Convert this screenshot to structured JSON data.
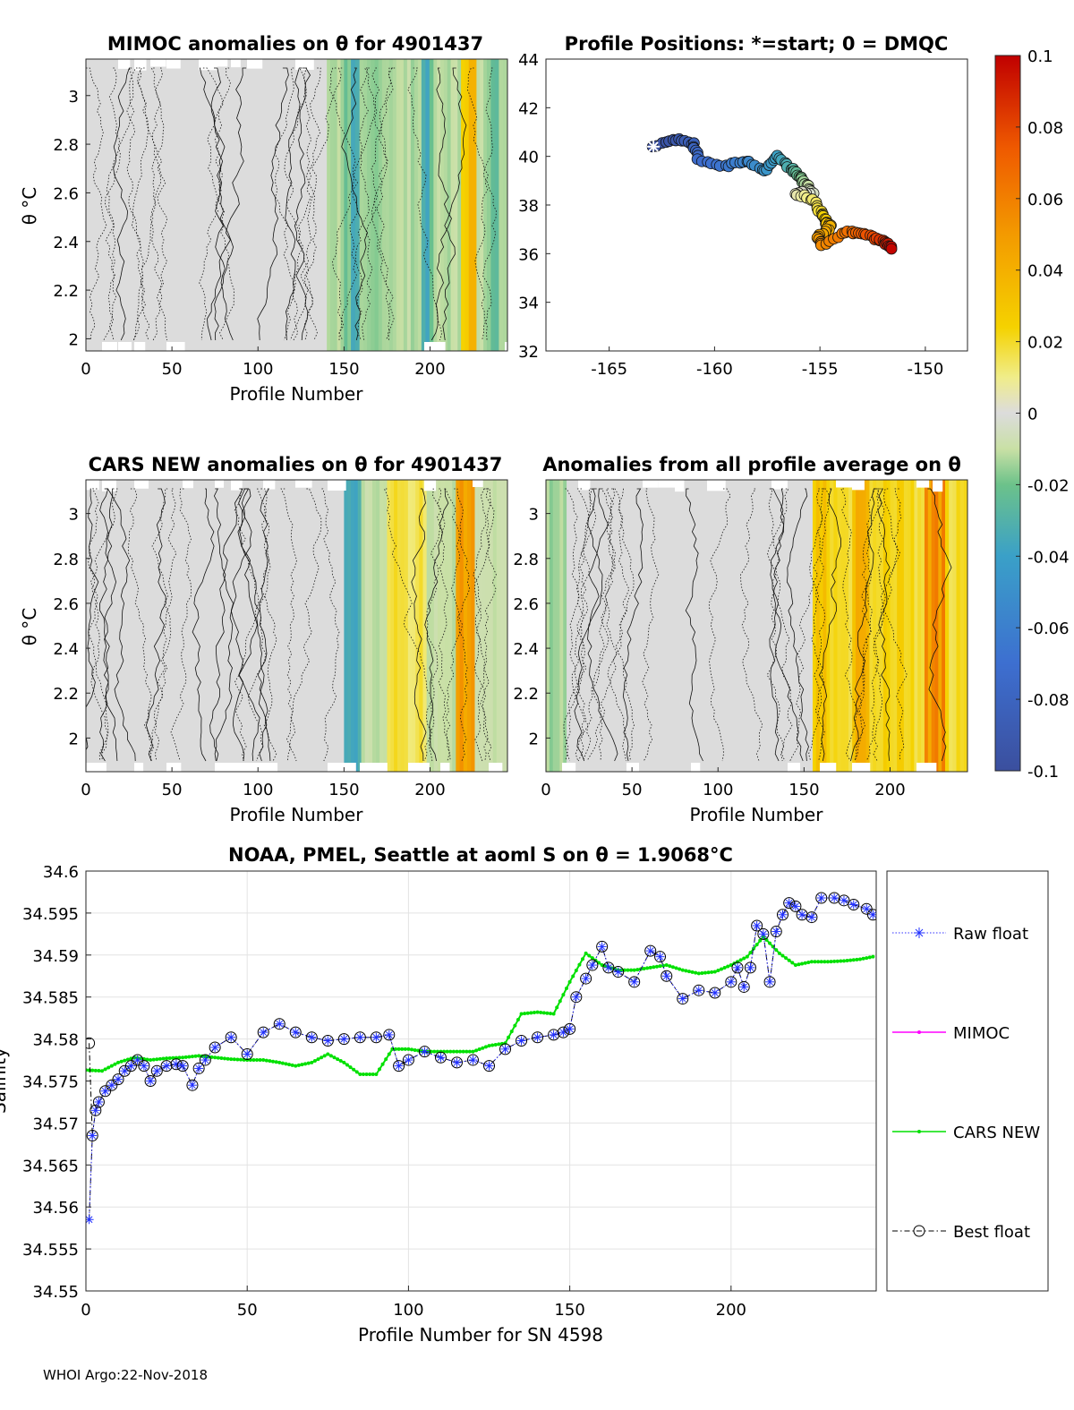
{
  "footer": "WHOI Argo:22-Nov-2018",
  "colorbar": {
    "ticks": [
      "0.1",
      "0.08",
      "0.06",
      "0.04",
      "0.02",
      "0",
      "-0.02",
      "-0.04",
      "-0.06",
      "-0.08",
      "-0.1"
    ],
    "range": [
      -0.1,
      0.1
    ]
  },
  "chart_data": [
    {
      "id": "mimoc",
      "type": "heatmap",
      "title": "MIMOC anomalies on θ  for 4901437",
      "xlabel": "Profile Number",
      "ylabel": "θ °C",
      "xlim": [
        0,
        245
      ],
      "ylim": [
        1.95,
        3.15
      ],
      "xticks": [
        "0",
        "50",
        "100",
        "150",
        "200"
      ],
      "yticks": [
        "2",
        "2.2",
        "2.4",
        "2.6",
        "2.8",
        "3"
      ],
      "bands": [
        {
          "x0": 0,
          "x1": 140,
          "v": 0.0
        },
        {
          "x0": 140,
          "x1": 150,
          "v": -0.012
        },
        {
          "x0": 150,
          "x1": 154,
          "v": -0.02
        },
        {
          "x0": 154,
          "x1": 159,
          "v": -0.045
        },
        {
          "x0": 159,
          "x1": 170,
          "v": -0.018
        },
        {
          "x0": 170,
          "x1": 195,
          "v": -0.012
        },
        {
          "x0": 195,
          "x1": 202,
          "v": -0.03
        },
        {
          "x0": 202,
          "x1": 218,
          "v": -0.012
        },
        {
          "x0": 218,
          "x1": 227,
          "v": 0.035
        },
        {
          "x0": 227,
          "x1": 233,
          "v": -0.012
        },
        {
          "x0": 233,
          "x1": 240,
          "v": -0.02
        },
        {
          "x0": 240,
          "x1": 245,
          "v": -0.01
        }
      ]
    },
    {
      "id": "positions",
      "type": "scatter",
      "title": "Profile Positions: *=start; 0 = DMQC",
      "xlim": [
        -168,
        -148
      ],
      "ylim": [
        32,
        44
      ],
      "xticks": [
        "-165",
        "-160",
        "-155",
        "-150"
      ],
      "yticks": [
        "32",
        "34",
        "36",
        "38",
        "40",
        "42",
        "44"
      ],
      "track": [
        [
          -162.9,
          40.4
        ],
        [
          -161.8,
          40.7
        ],
        [
          -161.0,
          40.5
        ],
        [
          -160.8,
          39.9
        ],
        [
          -159.5,
          39.6
        ],
        [
          -158.5,
          39.8
        ],
        [
          -157.6,
          39.4
        ],
        [
          -157.0,
          40.0
        ],
        [
          -156.4,
          39.5
        ],
        [
          -156.0,
          39.2
        ],
        [
          -155.7,
          38.9
        ],
        [
          -155.3,
          38.5
        ],
        [
          -156.2,
          38.5
        ],
        [
          -155.3,
          38.2
        ],
        [
          -154.9,
          37.6
        ],
        [
          -154.7,
          37.3
        ],
        [
          -154.5,
          37.1
        ],
        [
          -155.1,
          36.7
        ],
        [
          -154.9,
          36.3
        ],
        [
          -153.8,
          36.9
        ],
        [
          -153.0,
          36.8
        ],
        [
          -152.3,
          36.6
        ],
        [
          -151.8,
          36.4
        ],
        [
          -151.5,
          36.2
        ]
      ]
    },
    {
      "id": "cars",
      "type": "heatmap",
      "title": "CARS NEW anomalies on θ for 4901437",
      "xlabel": "Profile Number",
      "ylabel": "θ °C",
      "xlim": [
        0,
        245
      ],
      "ylim": [
        1.85,
        3.15
      ],
      "xticks": [
        "0",
        "50",
        "100",
        "150",
        "200"
      ],
      "yticks": [
        "2",
        "2.2",
        "2.4",
        "2.6",
        "2.8",
        "3"
      ],
      "bands": [
        {
          "x0": 0,
          "x1": 150,
          "v": 0.0
        },
        {
          "x0": 150,
          "x1": 160,
          "v": -0.03
        },
        {
          "x0": 160,
          "x1": 175,
          "v": -0.01
        },
        {
          "x0": 175,
          "x1": 185,
          "v": 0.022
        },
        {
          "x0": 185,
          "x1": 198,
          "v": 0.016
        },
        {
          "x0": 198,
          "x1": 215,
          "v": -0.01
        },
        {
          "x0": 215,
          "x1": 226,
          "v": 0.045
        },
        {
          "x0": 226,
          "x1": 245,
          "v": -0.01
        }
      ]
    },
    {
      "id": "allprof",
      "type": "heatmap",
      "title": "Anomalies from all profile average on θ",
      "xlabel": "Profile Number",
      "xlim": [
        0,
        245
      ],
      "ylim": [
        1.85,
        3.15
      ],
      "xticks": [
        "0",
        "50",
        "100",
        "150",
        "200"
      ],
      "yticks": [
        "2",
        "2.2",
        "2.4",
        "2.6",
        "2.8",
        "3"
      ],
      "bands": [
        {
          "x0": 0,
          "x1": 12,
          "v": -0.015
        },
        {
          "x0": 12,
          "x1": 155,
          "v": 0.0
        },
        {
          "x0": 155,
          "x1": 165,
          "v": 0.03
        },
        {
          "x0": 165,
          "x1": 178,
          "v": 0.02
        },
        {
          "x0": 178,
          "x1": 188,
          "v": 0.04
        },
        {
          "x0": 188,
          "x1": 212,
          "v": 0.025
        },
        {
          "x0": 212,
          "x1": 220,
          "v": 0.02
        },
        {
          "x0": 220,
          "x1": 232,
          "v": 0.06
        },
        {
          "x0": 232,
          "x1": 245,
          "v": 0.02
        }
      ]
    },
    {
      "id": "salinity",
      "type": "line",
      "title": "NOAA, PMEL, Seattle at aoml S on θ = 1.9068°C",
      "xlabel": "Profile Number for SN 4598",
      "ylabel": "Salinity",
      "xlim": [
        0,
        245
      ],
      "ylim": [
        34.55,
        34.6
      ],
      "xticks": [
        "0",
        "50",
        "100",
        "150",
        "200"
      ],
      "yticks": [
        "34.55",
        "34.555",
        "34.56",
        "34.565",
        "34.57",
        "34.575",
        "34.58",
        "34.585",
        "34.59",
        "34.595",
        "34.6"
      ],
      "legend": [
        "Raw float",
        "MIMOC",
        "CARS NEW",
        "Best float"
      ],
      "series": [
        {
          "name": "Raw float",
          "x": [
            1,
            2,
            3,
            4,
            6,
            8,
            10,
            12,
            14,
            16,
            18,
            20,
            22,
            25,
            28,
            30,
            33,
            35,
            37,
            40,
            45,
            50,
            55,
            60,
            65,
            70,
            75,
            80,
            85,
            90,
            94,
            97,
            100,
            105,
            110,
            115,
            120,
            125,
            130,
            135,
            140,
            145,
            148,
            150,
            152,
            155,
            157,
            160,
            162,
            165,
            170,
            175,
            178,
            180,
            185,
            190,
            195,
            200,
            202,
            204,
            206,
            208,
            210,
            212,
            214,
            216,
            218,
            220,
            222,
            225,
            228,
            232,
            235,
            238,
            242,
            244
          ],
          "values": [
            34.5585,
            34.5685,
            34.5715,
            34.5725,
            34.5738,
            34.5745,
            34.5752,
            34.5762,
            34.5768,
            34.5775,
            34.5768,
            34.575,
            34.5762,
            34.5768,
            34.577,
            34.5768,
            34.5745,
            34.5765,
            34.5775,
            34.579,
            34.5802,
            34.5782,
            34.5808,
            34.5818,
            34.5808,
            34.5802,
            34.5798,
            34.58,
            34.5802,
            34.5802,
            34.5805,
            34.5768,
            34.5775,
            34.5785,
            34.5778,
            34.5772,
            34.5775,
            34.5768,
            34.5788,
            34.5798,
            34.5802,
            34.5805,
            34.5808,
            34.5812,
            34.585,
            34.5872,
            34.5888,
            34.591,
            34.5885,
            34.588,
            34.5868,
            34.5905,
            34.5898,
            34.5875,
            34.5848,
            34.5858,
            34.5855,
            34.5868,
            34.5885,
            34.5862,
            34.5885,
            34.5935,
            34.5925,
            34.5868,
            34.5928,
            34.5948,
            34.5962,
            34.5958,
            34.5948,
            34.5945,
            34.5968,
            34.5968,
            34.5965,
            34.596,
            34.5955,
            34.5948
          ]
        },
        {
          "name": "CARS NEW",
          "x": [
            0,
            5,
            10,
            15,
            20,
            25,
            30,
            35,
            40,
            45,
            50,
            55,
            60,
            65,
            70,
            75,
            80,
            85,
            90,
            95,
            100,
            105,
            110,
            115,
            120,
            125,
            130,
            135,
            140,
            145,
            150,
            155,
            160,
            165,
            170,
            175,
            180,
            185,
            190,
            195,
            200,
            205,
            210,
            215,
            220,
            225,
            230,
            235,
            240,
            244
          ],
          "values": [
            34.5763,
            34.5762,
            34.5772,
            34.5778,
            34.5775,
            34.5777,
            34.5778,
            34.578,
            34.5778,
            34.5776,
            34.5775,
            34.5775,
            34.5772,
            34.5768,
            34.5772,
            34.5782,
            34.5772,
            34.5758,
            34.5758,
            34.5788,
            34.5788,
            34.5785,
            34.5785,
            34.5785,
            34.5785,
            34.5792,
            34.5795,
            34.583,
            34.5832,
            34.583,
            34.5868,
            34.5902,
            34.5888,
            34.5882,
            34.5882,
            34.5885,
            34.5888,
            34.5882,
            34.5878,
            34.588,
            34.5888,
            34.5898,
            34.5922,
            34.5902,
            34.5888,
            34.5892,
            34.5892,
            34.5893,
            34.5895,
            34.5898
          ]
        }
      ]
    }
  ]
}
